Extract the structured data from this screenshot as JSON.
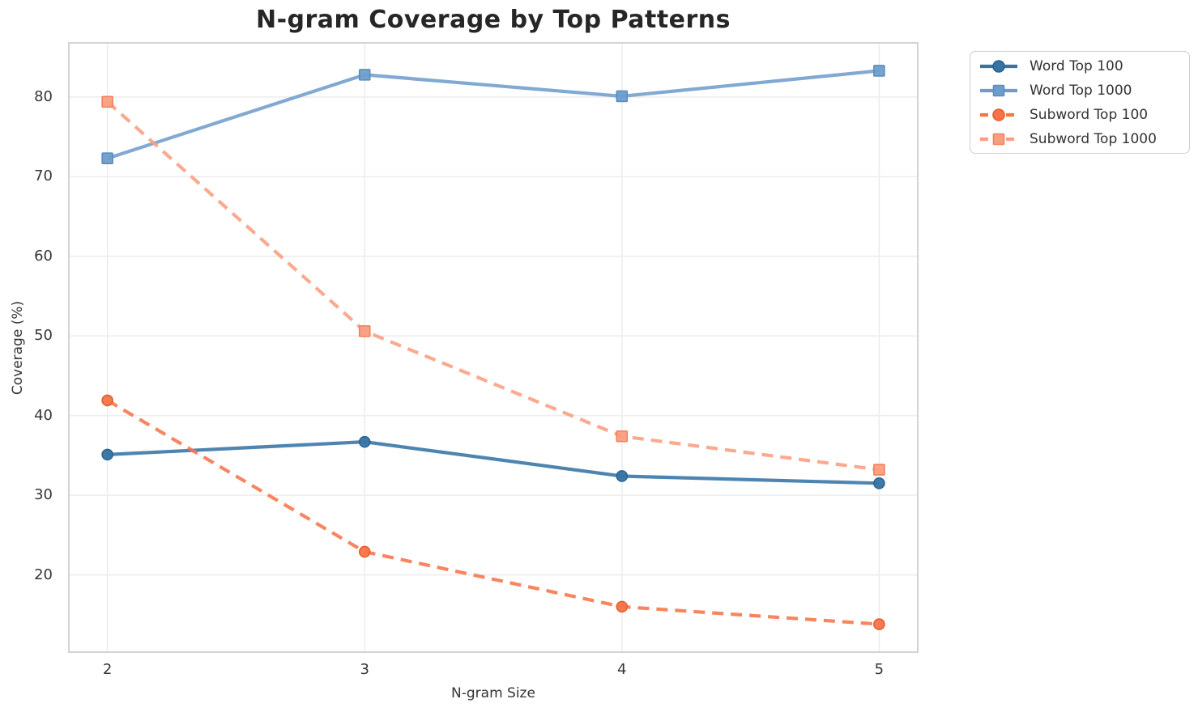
{
  "chart_data": {
    "type": "line",
    "title": "N-gram Coverage by Top Patterns",
    "xlabel": "N-gram Size",
    "ylabel": "Coverage (%)",
    "x": [
      2,
      3,
      4,
      5
    ],
    "x_tick_labels": [
      "2",
      "3",
      "4",
      "5"
    ],
    "y_ticks": [
      20,
      30,
      40,
      50,
      60,
      70,
      80
    ],
    "xlim": [
      1.85,
      5.15
    ],
    "ylim": [
      10.3,
      86.8
    ],
    "grid": true,
    "legend_position": "outside-top-right",
    "series": [
      {
        "name": "Word Top 100",
        "values": [
          35.1,
          36.7,
          32.4,
          31.5
        ],
        "color": "#3574A5",
        "edge": "#2C6391",
        "line_style": "solid",
        "marker": "circle"
      },
      {
        "name": "Word Top 1000",
        "values": [
          72.3,
          82.8,
          80.1,
          83.3
        ],
        "color": "#6F9DCB",
        "edge": "#5B8DBF",
        "line_style": "solid",
        "marker": "square"
      },
      {
        "name": "Subword Top 100",
        "values": [
          41.9,
          22.9,
          16.0,
          13.8
        ],
        "color": "#F77449",
        "edge": "#E55E2F",
        "line_style": "dashed",
        "marker": "circle"
      },
      {
        "name": "Subword Top 1000",
        "values": [
          79.4,
          50.6,
          37.4,
          33.2
        ],
        "color": "#FA9E80",
        "edge": "#F2815B",
        "line_style": "dashed",
        "marker": "square"
      }
    ],
    "style": {
      "background": "#ffffff",
      "grid_color": "#EDEDED",
      "spine_color": "#D3D3D3",
      "title_color": "#262626",
      "tick_color": "#363636",
      "label_color": "#333333"
    }
  }
}
